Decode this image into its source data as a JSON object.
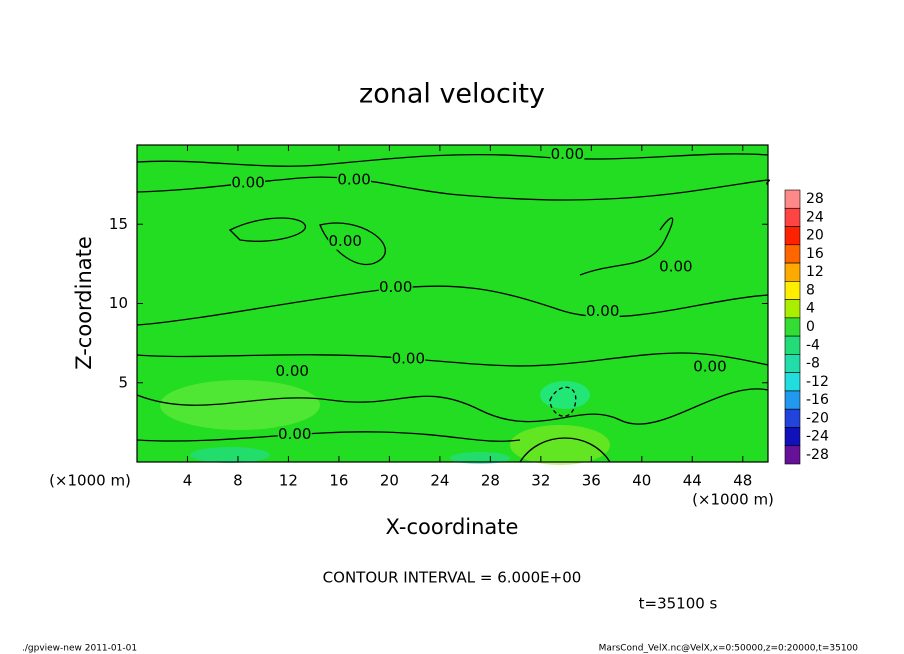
{
  "chart_data": {
    "type": "contour",
    "title": "zonal velocity",
    "xlabel": "X-coordinate",
    "ylabel": "Z-coordinate",
    "x_unit_label": "(×1000 m)",
    "x_unit_label_right": "(×1000 m)",
    "xlim": [
      0,
      50
    ],
    "ylim": [
      0,
      20
    ],
    "xticks": [
      4,
      8,
      12,
      16,
      20,
      24,
      28,
      32,
      36,
      40,
      44,
      48
    ],
    "yticks": [
      5,
      10,
      15
    ],
    "field_color": "#22dd22",
    "colorbar": {
      "levels": [
        28,
        24,
        20,
        16,
        12,
        8,
        4,
        0,
        -4,
        -8,
        -12,
        -16,
        -20,
        -24,
        -28
      ],
      "colors": [
        "#ff8888",
        "#ff4444",
        "#ff2200",
        "#ff6600",
        "#ffaa00",
        "#ffee00",
        "#aaee00",
        "#33dd33",
        "#22dd77",
        "#22ddaa",
        "#22dddd",
        "#2299ee",
        "#2244dd",
        "#1111bb",
        "#661199"
      ]
    },
    "annotations": [
      {
        "text": "0.00",
        "x": 34.1,
        "y": 19.4
      },
      {
        "text": "0.00",
        "x": 8.8,
        "y": 17.6
      },
      {
        "text": "0.00",
        "x": 17.2,
        "y": 17.8
      },
      {
        "text": "0.00",
        "x": 16.5,
        "y": 13.9
      },
      {
        "text": "0.00",
        "x": 20.5,
        "y": 11.0
      },
      {
        "text": "0.00",
        "x": 42.7,
        "y": 12.3
      },
      {
        "text": "0.00",
        "x": 36.9,
        "y": 9.5
      },
      {
        "text": "0.00",
        "x": 21.5,
        "y": 6.5
      },
      {
        "text": "0.00",
        "x": 12.3,
        "y": 5.7
      },
      {
        "text": "0.00",
        "x": 45.4,
        "y": 6.0
      },
      {
        "text": "0.00",
        "x": 12.5,
        "y": 1.75
      }
    ],
    "contour_interval": "CONTOUR INTERVAL = 6.000E+00",
    "time_label": "t=35100 s",
    "footer_left": "./gpview-new   2011-01-01",
    "footer_right": "MarsCond_VelX.nc@VelX,x=0:50000,z=0:20000,t=35100"
  }
}
